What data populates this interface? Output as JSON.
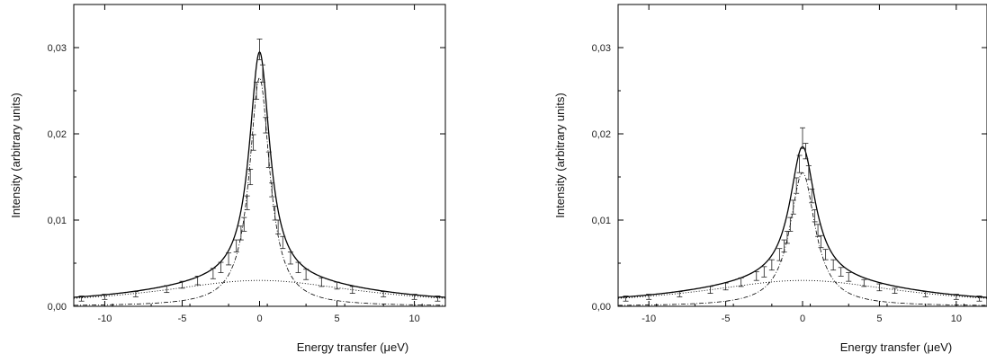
{
  "chart_data": [
    {
      "type": "line",
      "title": "",
      "xlabel": "Energy transfer (μeV)",
      "ylabel": "Intensity (arbitrary units)",
      "xlim": [
        -12,
        12
      ],
      "ylim": [
        0,
        0.035
      ],
      "xticks": [
        -10,
        -5,
        0,
        5,
        10
      ],
      "xtick_labels": [
        "-10",
        "-5",
        "0",
        "5",
        "10"
      ],
      "yticks": [
        0,
        0.01,
        0.02,
        0.03
      ],
      "ytick_labels": [
        "0,00",
        "0,01",
        "0,02",
        "0,03"
      ],
      "grid": false,
      "data_points": {
        "x": [
          -11.5,
          -10,
          -8,
          -6,
          -5,
          -4,
          -3,
          -2.5,
          -2,
          -1.5,
          -1.2,
          -1,
          -0.8,
          -0.6,
          -0.4,
          -0.2,
          0,
          0.2,
          0.4,
          0.6,
          0.8,
          1,
          1.2,
          1.5,
          2,
          2.5,
          3,
          4,
          5,
          6,
          8,
          10,
          11.5
        ],
        "y": [
          0.0009,
          0.0011,
          0.0014,
          0.002,
          0.0025,
          0.003,
          0.0038,
          0.0045,
          0.0055,
          0.007,
          0.0085,
          0.0095,
          0.012,
          0.015,
          0.019,
          0.025,
          0.0298,
          0.027,
          0.021,
          0.017,
          0.0135,
          0.0108,
          0.0092,
          0.0074,
          0.0056,
          0.0045,
          0.0037,
          0.0028,
          0.0024,
          0.0019,
          0.0014,
          0.0011,
          0.0009
        ],
        "err": [
          0.0003,
          0.0003,
          0.0003,
          0.0004,
          0.0004,
          0.0005,
          0.0006,
          0.0006,
          0.0007,
          0.0007,
          0.0008,
          0.0008,
          0.0008,
          0.0009,
          0.0009,
          0.001,
          0.0012,
          0.001,
          0.0009,
          0.0009,
          0.0008,
          0.0008,
          0.0008,
          0.0007,
          0.0007,
          0.0006,
          0.0006,
          0.0005,
          0.0004,
          0.0004,
          0.0003,
          0.0003,
          0.0003
        ]
      },
      "series": [
        {
          "style": "solid",
          "role": "total fit",
          "gamma": 0.8,
          "a": 0.0265,
          "b": 0.003,
          "sigma": 8
        },
        {
          "style": "dash-dot",
          "role": "narrow component",
          "gamma": 0.8,
          "a": 0.0265,
          "b": 0,
          "sigma": 8
        },
        {
          "style": "dotted",
          "role": "broad component",
          "gamma": 0.8,
          "a": 0,
          "b": 0.003,
          "sigma": 8
        }
      ]
    },
    {
      "type": "line",
      "title": "",
      "xlabel": "Energy transfer (μeV)",
      "ylabel": "Intensity (arbitrary units)",
      "xlim": [
        -12,
        12
      ],
      "ylim": [
        0,
        0.035
      ],
      "xticks": [
        -10,
        -5,
        0,
        5,
        10
      ],
      "xtick_labels": [
        "-10",
        "-5",
        "0",
        "5",
        "10"
      ],
      "yticks": [
        0,
        0.01,
        0.02,
        0.03
      ],
      "ytick_labels": [
        "0,00",
        "0,01",
        "0,02",
        "0,03"
      ],
      "grid": false,
      "data_points": {
        "x": [
          -11.5,
          -10,
          -8,
          -6,
          -5,
          -4,
          -3,
          -2.5,
          -2,
          -1.5,
          -1.2,
          -1,
          -0.8,
          -0.6,
          -0.4,
          -0.2,
          0,
          0.2,
          0.4,
          0.6,
          0.8,
          1,
          1.2,
          1.5,
          2,
          2.5,
          3,
          4,
          5,
          6,
          8,
          10,
          11.5
        ],
        "y": [
          0.0009,
          0.0011,
          0.0014,
          0.0019,
          0.0023,
          0.0028,
          0.0035,
          0.004,
          0.0048,
          0.006,
          0.007,
          0.008,
          0.0095,
          0.0115,
          0.014,
          0.0165,
          0.0195,
          0.018,
          0.0155,
          0.0128,
          0.0105,
          0.0088,
          0.0075,
          0.006,
          0.0048,
          0.004,
          0.0034,
          0.0027,
          0.0022,
          0.0018,
          0.0014,
          0.0011,
          0.0009
        ],
        "err": [
          0.0003,
          0.0003,
          0.0003,
          0.0004,
          0.0004,
          0.0005,
          0.0005,
          0.0006,
          0.0006,
          0.0007,
          0.0007,
          0.0007,
          0.0008,
          0.0008,
          0.0009,
          0.001,
          0.0012,
          0.0009,
          0.0008,
          0.0008,
          0.0007,
          0.0007,
          0.0007,
          0.0006,
          0.0006,
          0.0005,
          0.0005,
          0.0004,
          0.0004,
          0.0003,
          0.0003,
          0.0003,
          0.0003
        ]
      },
      "series": [
        {
          "style": "solid",
          "role": "total fit",
          "gamma": 1.0,
          "a": 0.0155,
          "b": 0.003,
          "sigma": 8
        },
        {
          "style": "dash-dot",
          "role": "narrow component",
          "gamma": 1.0,
          "a": 0.0155,
          "b": 0,
          "sigma": 8
        },
        {
          "style": "dotted",
          "role": "broad component",
          "gamma": 1.0,
          "a": 0,
          "b": 0.003,
          "sigma": 8
        }
      ]
    }
  ]
}
